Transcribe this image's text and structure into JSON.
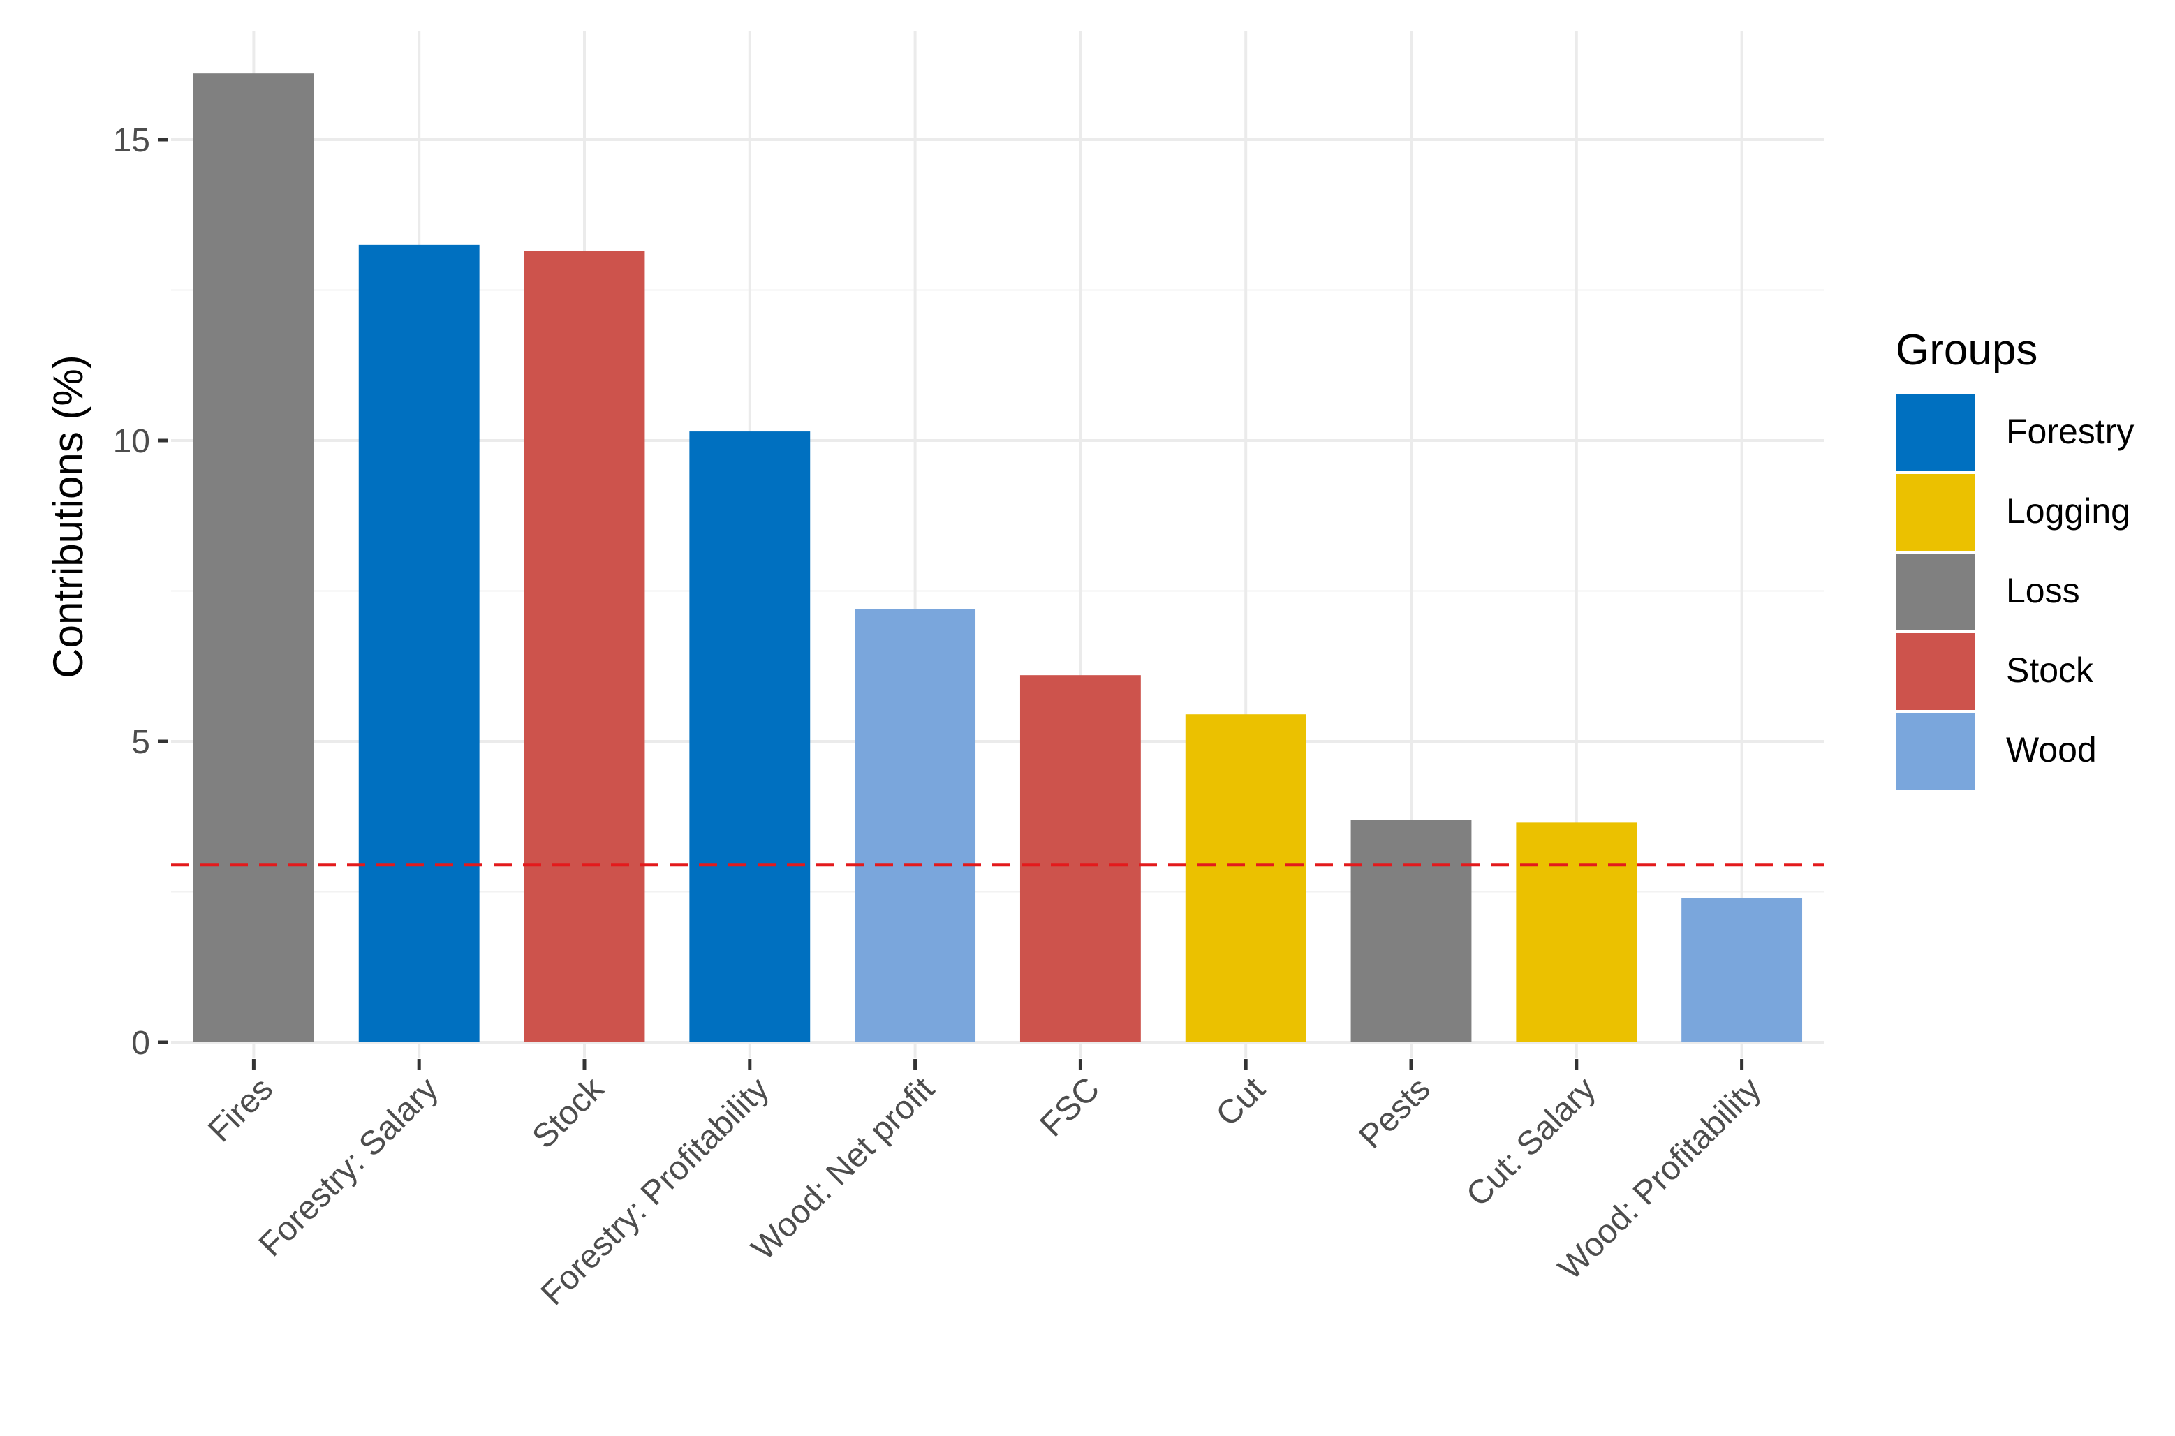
{
  "chart_data": {
    "type": "bar",
    "categories": [
      "Fires",
      "Forestry: Salary",
      "Stock",
      "Forestry: Profitability",
      "Wood: Net profit",
      "FSC",
      "Cut",
      "Pests",
      "Cut: Salary",
      "Wood: Profitability"
    ],
    "values": [
      16.1,
      13.25,
      13.15,
      10.15,
      7.2,
      6.1,
      5.45,
      3.7,
      3.65,
      2.4
    ],
    "groups": [
      "Loss",
      "Forestry",
      "Stock",
      "Forestry",
      "Wood",
      "Stock",
      "Logging",
      "Loss",
      "Logging",
      "Wood"
    ],
    "xlabel": "",
    "ylabel": "Contributions (%)",
    "ylim": [
      0,
      17
    ],
    "yticks": [
      0,
      5,
      10,
      15
    ],
    "reference_line": {
      "value": 2.95,
      "style": "dashed",
      "color": "#e31a1c"
    },
    "grid": true,
    "legend": {
      "title": "Groups",
      "position": "right",
      "items": [
        {
          "name": "Forestry",
          "color": "#0070C0"
        },
        {
          "name": "Logging",
          "color": "#EBC100"
        },
        {
          "name": "Loss",
          "color": "#808080"
        },
        {
          "name": "Stock",
          "color": "#CD534C"
        },
        {
          "name": "Wood",
          "color": "#7AA6DC"
        }
      ]
    }
  }
}
